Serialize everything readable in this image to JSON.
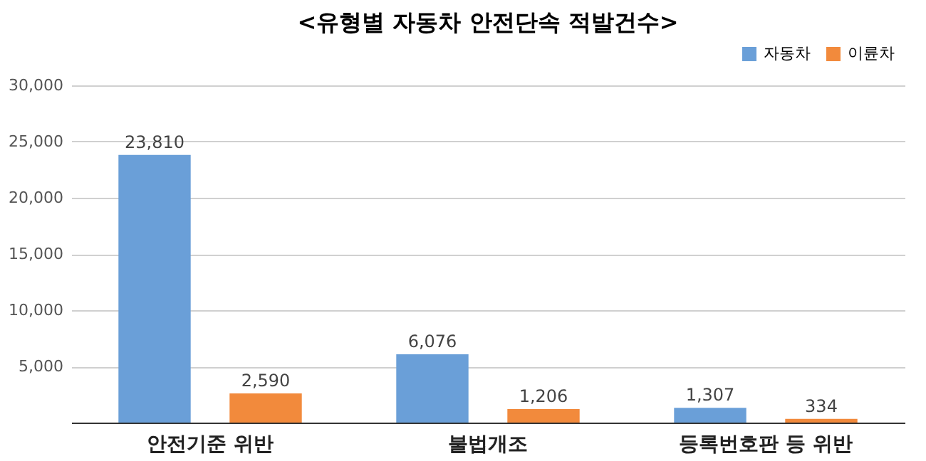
{
  "chart_data": {
    "type": "bar",
    "title": "<유형별 자동차 안전단속 적발건수>",
    "categories": [
      "안전기준 위반",
      "불법개조",
      "등록번호판 등 위반"
    ],
    "series": [
      {
        "name": "자동차",
        "color": "#6a9fd8",
        "values": [
          23810,
          6076,
          1307
        ],
        "value_labels": [
          "23,810",
          "6,076",
          "1,307"
        ]
      },
      {
        "name": "이륜차",
        "color": "#f28a3c",
        "values": [
          2590,
          1206,
          334
        ],
        "value_labels": [
          "2,590",
          "1,206",
          "334"
        ]
      }
    ],
    "ylim": [
      0,
      30000
    ],
    "yticks": [
      {
        "value": 0,
        "label": null
      },
      {
        "value": 5000,
        "label": "5,000"
      },
      {
        "value": 10000,
        "label": "10,000"
      },
      {
        "value": 15000,
        "label": "15,000"
      },
      {
        "value": 20000,
        "label": "20,000"
      },
      {
        "value": 25000,
        "label": "25,000"
      },
      {
        "value": 30000,
        "label": "30,000"
      }
    ],
    "grid": "y",
    "legend": "top right"
  }
}
